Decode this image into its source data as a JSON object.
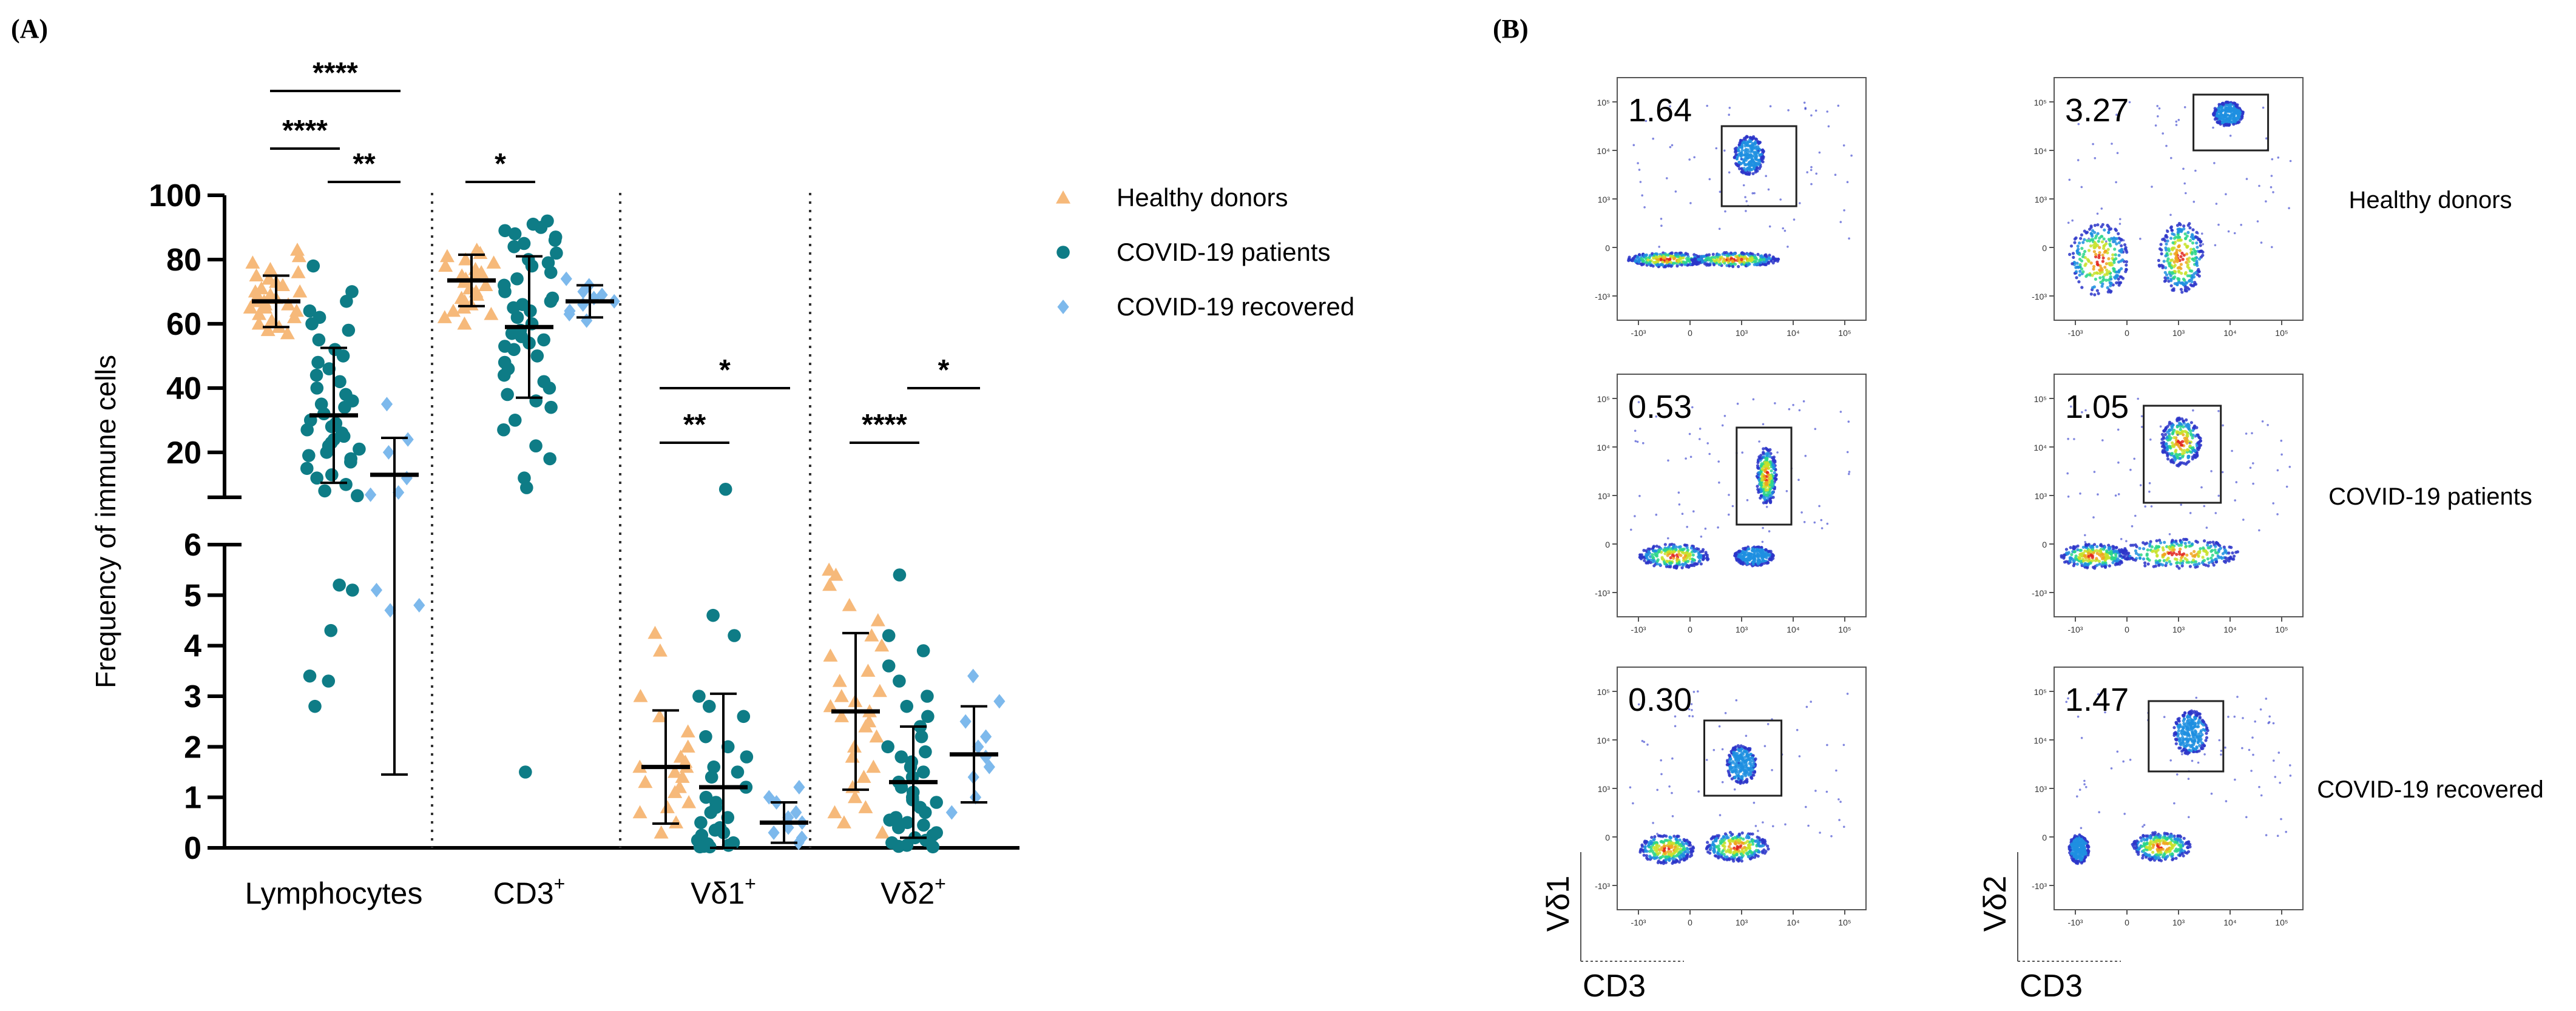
{
  "panel_a_label": "(A)",
  "panel_b_label": "(B)",
  "chart_data": [
    {
      "type": "scatter",
      "title": "",
      "ylabel": "Frequency of immune cells",
      "xlabel": "",
      "y_upper_range": [
        6,
        100
      ],
      "y_lower_range": [
        0,
        6
      ],
      "upper_ticks": [
        "100",
        "80",
        "60",
        "40",
        "20"
      ],
      "lower_ticks": [
        "6",
        "5",
        "4",
        "3",
        "2",
        "1",
        "0"
      ],
      "categories": [
        {
          "label": "Lymphocytes",
          "sup": ""
        },
        {
          "label": "CD3",
          "sup": "+"
        },
        {
          "label": "Vδ1",
          "sup": "+"
        },
        {
          "label": "Vδ2",
          "sup": "+"
        }
      ],
      "legend": [
        {
          "name": "Healthy donors",
          "color": "#F6B97A",
          "marker": "triangle"
        },
        {
          "name": "COVID-19 patients",
          "color": "#0E7C86",
          "marker": "circle"
        },
        {
          "name": "COVID-19 recovered",
          "color": "#7DB9EC",
          "marker": "diamond"
        }
      ],
      "series": [
        {
          "name": "Healthy donors",
          "category": "Lymphocytes",
          "mean": 67,
          "sd": 8,
          "values": [
            83,
            81,
            79,
            77,
            76,
            75,
            74,
            73,
            72,
            71,
            70,
            70,
            69,
            68,
            68,
            67,
            67,
            66,
            66,
            65,
            65,
            64,
            63,
            62,
            61,
            60,
            59,
            58,
            57
          ]
        },
        {
          "name": "COVID-19 patients",
          "category": "Lymphocytes",
          "mean": 31.5,
          "sd": 21,
          "values": [
            78,
            70,
            67,
            64,
            62,
            60,
            58,
            55,
            52,
            50,
            48,
            46,
            44,
            42,
            40,
            38,
            36,
            35,
            34,
            32,
            30,
            29,
            28,
            27,
            26,
            25,
            24,
            23,
            22,
            21,
            20,
            19,
            18,
            17,
            15,
            13,
            12,
            10,
            8,
            6.5,
            5.2,
            5.1,
            4.3,
            3.4,
            3.3,
            2.8
          ]
        },
        {
          "name": "COVID-19 recovered",
          "category": "Lymphocytes",
          "mean": 13,
          "sd_top": 24.5,
          "sd_bottom": 1.45,
          "values": [
            35,
            24,
            20,
            12,
            7.5,
            6.8,
            5.1,
            4.8,
            4.7
          ]
        },
        {
          "name": "Healthy donors",
          "category": "CD3",
          "mean": 73.5,
          "sd": 8,
          "values": [
            83,
            82,
            81,
            80,
            79,
            78,
            77,
            76,
            75,
            75,
            74,
            73,
            72,
            71,
            70,
            69,
            68,
            67,
            66,
            65,
            64,
            63,
            62,
            60
          ]
        },
        {
          "name": "COVID-19 patients",
          "category": "CD3",
          "mean": 59,
          "sd": 22,
          "values": [
            92,
            91,
            90,
            89,
            88,
            87,
            86,
            85,
            84,
            82,
            80,
            79,
            78,
            76,
            74,
            72,
            70,
            68,
            67,
            66,
            65,
            64,
            62,
            60,
            58,
            57,
            56,
            55,
            54,
            53,
            52,
            50,
            48,
            46,
            44,
            42,
            40,
            38,
            36,
            34,
            30,
            27,
            22,
            18,
            12,
            9,
            1.5
          ]
        },
        {
          "name": "COVID-19 recovered",
          "category": "CD3",
          "mean": 67,
          "sd": 5,
          "values": [
            74,
            72,
            70,
            69,
            68,
            67,
            66,
            64,
            63,
            61
          ]
        },
        {
          "name": "Healthy donors",
          "category": "Vδ1",
          "mean": 1.6,
          "sd": 1.12,
          "values": [
            4.25,
            3.9,
            3.0,
            2.6,
            2.3,
            2.0,
            1.8,
            1.7,
            1.6,
            1.6,
            1.5,
            1.4,
            1.3,
            1.2,
            1.1,
            0.9,
            0.8,
            0.7,
            0.5,
            0.3
          ]
        },
        {
          "name": "COVID-19 patients",
          "category": "Vδ1",
          "mean": 1.2,
          "sd": 1.85,
          "values": [
            8.5,
            4.6,
            4.2,
            3.0,
            2.8,
            2.6,
            2.2,
            2.0,
            1.8,
            1.6,
            1.5,
            1.4,
            1.2,
            1.0,
            0.9,
            0.8,
            0.7,
            0.6,
            0.5,
            0.4,
            0.35,
            0.3,
            0.25,
            0.2,
            0.15,
            0.1,
            0.08,
            0.05,
            0.05,
            0.03,
            0.02,
            0.02
          ]
        },
        {
          "name": "COVID-19 recovered",
          "category": "Vδ1",
          "mean": 0.5,
          "sd": 0.4,
          "values": [
            1.2,
            1.0,
            0.9,
            0.7,
            0.6,
            0.5,
            0.4,
            0.3,
            0.2,
            0.1
          ]
        },
        {
          "name": "Healthy donors",
          "category": "Vδ2",
          "mean": 2.7,
          "sd": 1.55,
          "values": [
            5.5,
            5.4,
            5.2,
            4.8,
            4.5,
            4.2,
            4.0,
            3.8,
            3.5,
            3.3,
            3.1,
            3.0,
            2.9,
            2.8,
            2.7,
            2.6,
            2.5,
            2.4,
            2.2,
            2.0,
            1.8,
            1.6,
            1.4,
            1.2,
            1.0,
            0.8,
            0.7,
            0.5,
            0.3
          ]
        },
        {
          "name": "COVID-19 patients",
          "category": "Vδ2",
          "mean": 1.3,
          "sd": 1.1,
          "values": [
            5.4,
            4.2,
            3.9,
            3.6,
            3.3,
            3.0,
            2.8,
            2.6,
            2.4,
            2.2,
            2.0,
            1.9,
            1.8,
            1.7,
            1.6,
            1.5,
            1.4,
            1.3,
            1.2,
            1.1,
            1.0,
            0.95,
            0.9,
            0.8,
            0.7,
            0.6,
            0.55,
            0.5,
            0.45,
            0.4,
            0.3,
            0.25,
            0.2,
            0.15,
            0.1,
            0.05,
            0.03,
            0.02
          ]
        },
        {
          "name": "COVID-19 recovered",
          "category": "Vδ2",
          "mean": 1.85,
          "sd": 0.95,
          "values": [
            3.4,
            2.9,
            2.5,
            2.2,
            2.0,
            1.8,
            1.6,
            1.4,
            1.0,
            0.7
          ]
        }
      ],
      "significance": [
        {
          "label": "****",
          "category": "Lymphocytes",
          "from": 0,
          "to": 1,
          "level": "upper"
        },
        {
          "label": "****",
          "category": "Lymphocytes",
          "from": 0,
          "to": 2,
          "level": "top"
        },
        {
          "label": "**",
          "category": "Lymphocytes",
          "from": 1,
          "to": 2,
          "level": "lower"
        },
        {
          "label": "*",
          "category": "CD3",
          "from": 0,
          "to": 1,
          "level": "lower"
        },
        {
          "label": "**",
          "category": "Vδ1",
          "from": 0,
          "to": 1,
          "level": "lower"
        },
        {
          "label": "*",
          "category": "Vδ1",
          "from": 0,
          "to": 2,
          "level": "upper"
        },
        {
          "label": "****",
          "category": "Vδ2",
          "from": 0,
          "to": 1,
          "level": "lower"
        },
        {
          "label": "*",
          "category": "Vδ2",
          "from": 1,
          "to": 2,
          "level": "upper"
        }
      ]
    },
    {
      "type": "flow-cytometry-grid",
      "columns": [
        {
          "y_axis": "Vδ1",
          "x_axis": "CD3"
        },
        {
          "y_axis": "Vδ2",
          "x_axis": "CD3"
        }
      ],
      "rows": [
        "Healthy donors",
        "COVID-19 patients",
        "COVID-19 recovered"
      ],
      "gate_percentages": [
        [
          "1.64",
          "3.27"
        ],
        [
          "0.53",
          "1.05"
        ],
        [
          "0.30",
          "1.47"
        ]
      ],
      "y_ticks": [
        "10⁵",
        "10⁴",
        "10³",
        "0",
        "-10³"
      ],
      "x_ticks": [
        "-10³",
        "0",
        "10³",
        "10⁴",
        "10⁵"
      ]
    }
  ]
}
